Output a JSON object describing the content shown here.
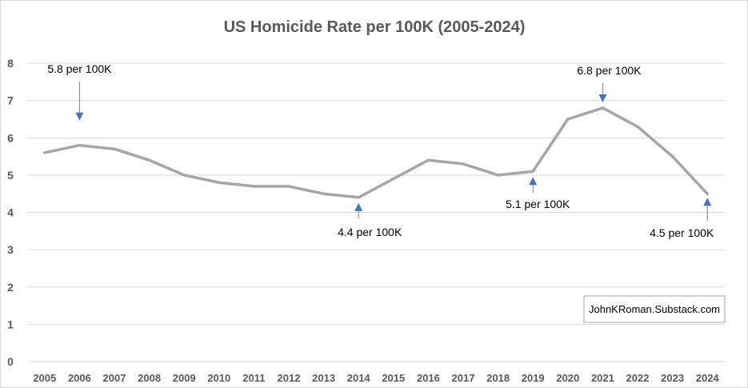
{
  "chart_data": {
    "type": "line",
    "title": "US Homicide Rate per 100K (2005-2024)",
    "x": [
      "2005",
      "2006",
      "2007",
      "2008",
      "2009",
      "2010",
      "2011",
      "2012",
      "2013",
      "2014",
      "2015",
      "2016",
      "2017",
      "2018",
      "2019",
      "2020",
      "2021",
      "2022",
      "2023",
      "2024"
    ],
    "series": [
      {
        "values": [
          5.6,
          5.8,
          5.7,
          5.4,
          5.0,
          4.8,
          4.7,
          4.7,
          4.5,
          4.4,
          4.9,
          5.4,
          5.3,
          5.0,
          5.1,
          6.5,
          6.8,
          6.3,
          5.5,
          4.5
        ]
      }
    ],
    "ylim": [
      0,
      8
    ],
    "yticks": [
      "0",
      "1",
      "2",
      "3",
      "4",
      "5",
      "6",
      "7",
      "8"
    ],
    "grid": true,
    "line_color": "#a6a6a6",
    "annotations": [
      {
        "text": "5.8 per 100K",
        "x": "2006",
        "y": 5.8
      },
      {
        "text": "4.4 per 100K",
        "x": "2014",
        "y": 4.4
      },
      {
        "text": "5.1 per 100K",
        "x": "2019",
        "y": 5.1
      },
      {
        "text": "6.8 per 100K",
        "x": "2021",
        "y": 6.8
      },
      {
        "text": "4.5 per 100K",
        "x": "2024",
        "y": 4.5
      }
    ],
    "arrow_color": "#4472c4",
    "credit": "JohnKRoman.Substack.com"
  }
}
